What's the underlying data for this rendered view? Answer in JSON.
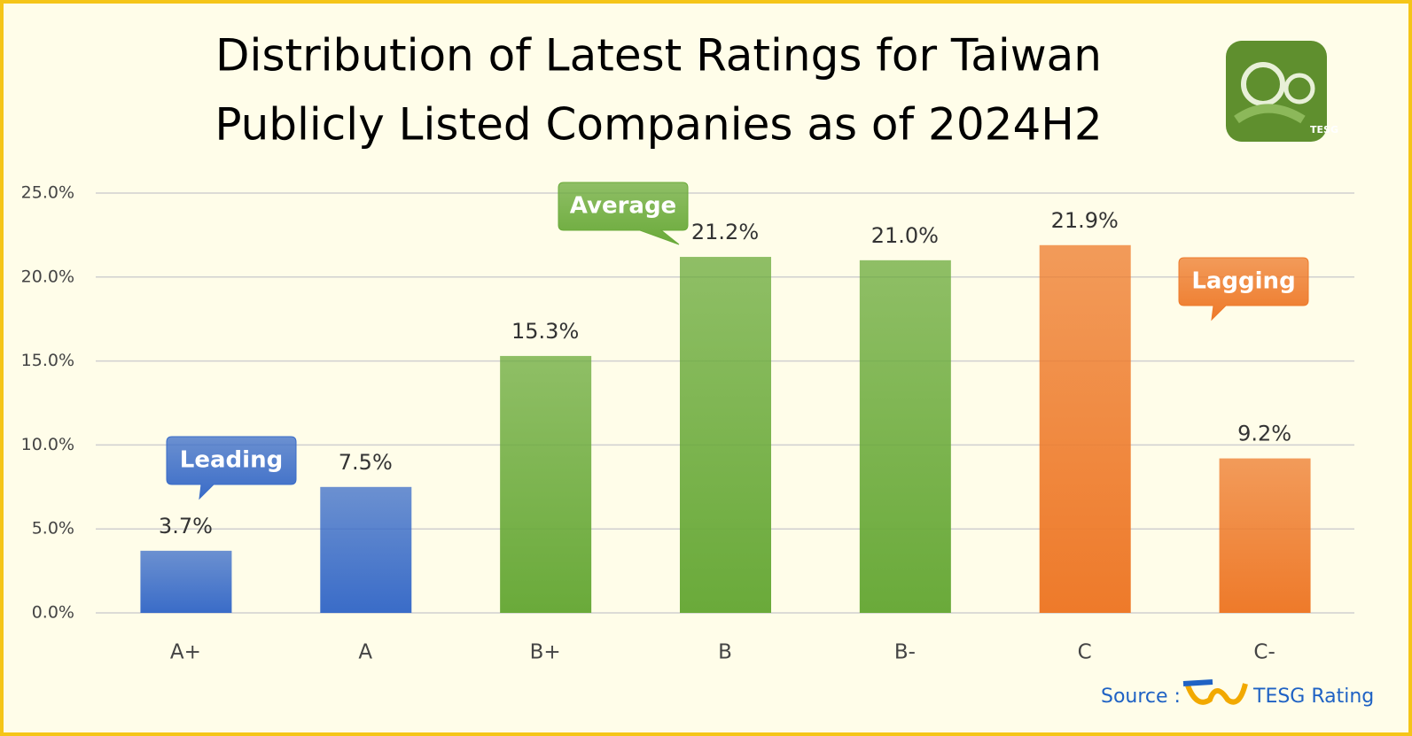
{
  "chart_data": {
    "type": "bar",
    "title": [
      "Distribution of Latest Ratings for Taiwan",
      "Publicly Listed Companies as of 2024H2"
    ],
    "categories": [
      "A+",
      "A",
      "B+",
      "B",
      "B-",
      "C",
      "C-"
    ],
    "values": [
      3.7,
      7.5,
      15.3,
      21.2,
      21.0,
      21.9,
      9.2
    ],
    "value_labels": [
      "3.7%",
      "7.5%",
      "15.3%",
      "21.2%",
      "21.0%",
      "21.9%",
      "9.2%"
    ],
    "colors": [
      "#3a6cc8",
      "#3a6cc8",
      "#6aaa3a",
      "#6aaa3a",
      "#6aaa3a",
      "#ee7a2a",
      "#ee7a2a"
    ],
    "ylim": [
      0,
      25
    ],
    "yticks": [
      {
        "value": 0,
        "label": "0.0%"
      },
      {
        "value": 5,
        "label": "5.0%"
      },
      {
        "value": 10,
        "label": "10.0%"
      },
      {
        "value": 15,
        "label": "15.0%"
      },
      {
        "value": 20,
        "label": "20.0%"
      },
      {
        "value": 25,
        "label": "25.0%"
      }
    ],
    "grid": true,
    "annotations": [
      {
        "text": "Leading",
        "color": "#3a6cc8"
      },
      {
        "text": "Average",
        "color": "#6aaa3a"
      },
      {
        "text": "Lagging",
        "color": "#ee7a2a"
      }
    ],
    "source": {
      "label": "Source :",
      "name": "TESG Rating"
    }
  }
}
